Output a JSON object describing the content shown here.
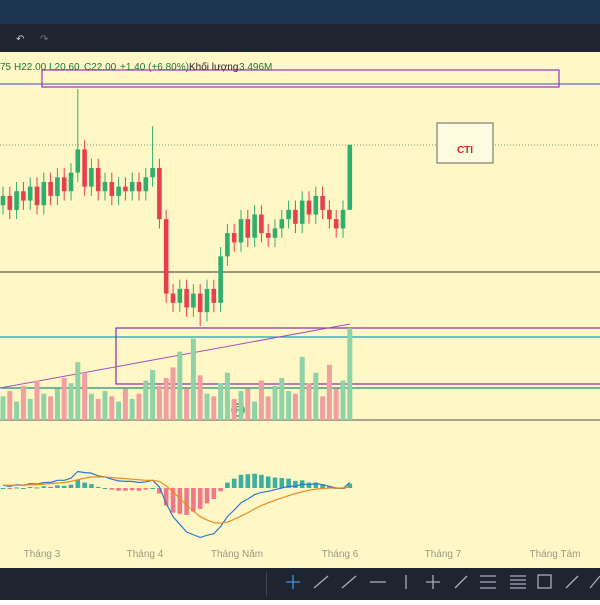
{
  "ohlc_bar": {
    "open_fragment": "75",
    "high": "H22.00",
    "low": "L20.60",
    "close": "C22.00",
    "change": "+1.40 (+6.80%)",
    "volume_label": "Khối lượng",
    "volume": "3.496M"
  },
  "symbol": "CTI",
  "marker": "F",
  "months": [
    "Tháng 3",
    "Tháng 4",
    "Tháng Năm",
    "Tháng 6",
    "Tháng 7",
    "Tháng Tám"
  ],
  "price_range": [
    17.5,
    23.5
  ],
  "candles": {
    "open": [
      20.7,
      20.9,
      20.6,
      21.0,
      20.8,
      21.1,
      20.7,
      21.2,
      20.9,
      21.3,
      21.0,
      21.4,
      21.9,
      21.1,
      21.5,
      21.0,
      21.2,
      20.9,
      21.1,
      21.0,
      21.2,
      21.0,
      21.3,
      21.5,
      20.4,
      18.8,
      18.6,
      18.9,
      18.5,
      18.8,
      18.4,
      18.9,
      18.6,
      19.6,
      20.1,
      19.9,
      20.4,
      20.0,
      20.5,
      20.1,
      20.0,
      20.2,
      20.4,
      20.6,
      20.3,
      20.8,
      20.5,
      20.9,
      20.6,
      20.4,
      20.2,
      20.6
    ],
    "high": [
      21.1,
      21.1,
      21.2,
      21.2,
      21.3,
      21.3,
      21.4,
      21.4,
      21.5,
      21.5,
      21.6,
      23.2,
      22.1,
      21.7,
      21.7,
      21.4,
      21.4,
      21.3,
      21.3,
      21.4,
      21.4,
      21.5,
      22.4,
      21.7,
      20.6,
      19.0,
      19.1,
      19.1,
      19.0,
      19.0,
      19.1,
      19.1,
      19.8,
      20.3,
      20.3,
      20.6,
      20.6,
      20.7,
      20.7,
      20.3,
      20.4,
      20.6,
      20.8,
      20.8,
      21.0,
      21.0,
      21.1,
      21.1,
      20.8,
      20.6,
      20.8,
      22.0
    ],
    "low": [
      20.5,
      20.4,
      20.4,
      20.6,
      20.6,
      20.5,
      20.5,
      20.7,
      20.7,
      20.8,
      20.8,
      21.2,
      20.9,
      20.9,
      20.8,
      20.8,
      20.7,
      20.7,
      20.8,
      20.8,
      20.8,
      20.8,
      21.1,
      20.2,
      18.6,
      18.4,
      18.4,
      18.3,
      18.3,
      18.1,
      18.2,
      18.4,
      18.4,
      19.4,
      19.7,
      19.7,
      19.8,
      19.8,
      19.9,
      19.8,
      19.8,
      20.0,
      20.2,
      20.1,
      20.1,
      20.3,
      20.3,
      20.4,
      20.2,
      20.0,
      20.0,
      20.6
    ],
    "close": [
      20.9,
      20.6,
      21.0,
      20.8,
      21.1,
      20.7,
      21.2,
      20.9,
      21.3,
      21.0,
      21.4,
      21.9,
      21.1,
      21.5,
      21.0,
      21.2,
      20.9,
      21.1,
      21.0,
      21.2,
      21.0,
      21.3,
      21.5,
      20.4,
      18.8,
      18.6,
      18.9,
      18.5,
      18.8,
      18.4,
      18.9,
      18.6,
      19.6,
      20.1,
      19.9,
      20.4,
      20.0,
      20.5,
      20.1,
      20.0,
      20.2,
      20.4,
      20.6,
      20.3,
      20.8,
      20.5,
      20.9,
      20.6,
      20.4,
      20.2,
      20.6,
      22.0
    ]
  },
  "volume_range": [
    0,
    3.5
  ],
  "volumes": [
    0.9,
    1.1,
    0.7,
    1.3,
    0.8,
    1.5,
    1.0,
    0.9,
    1.2,
    1.6,
    1.4,
    2.2,
    1.8,
    1.0,
    0.8,
    1.1,
    0.9,
    0.7,
    1.2,
    0.8,
    1.0,
    1.5,
    1.9,
    1.3,
    1.6,
    2.0,
    2.6,
    1.2,
    3.1,
    1.7,
    1.0,
    0.9,
    1.4,
    1.8,
    0.8,
    1.1,
    1.2,
    0.7,
    1.5,
    0.9,
    1.3,
    1.6,
    1.1,
    1.0,
    2.4,
    1.4,
    1.8,
    0.9,
    2.1,
    1.2,
    1.5,
    3.496
  ],
  "macd_range": [
    -1.2,
    0.8
  ],
  "macd": [
    0.05,
    0.03,
    0.06,
    0.05,
    0.08,
    0.07,
    0.1,
    0.1,
    0.14,
    0.14,
    0.18,
    0.3,
    0.28,
    0.27,
    0.22,
    0.2,
    0.16,
    0.13,
    0.12,
    0.12,
    0.1,
    0.11,
    0.14,
    0.02,
    -0.28,
    -0.52,
    -0.66,
    -0.8,
    -0.85,
    -0.9,
    -0.86,
    -0.83,
    -0.7,
    -0.52,
    -0.4,
    -0.27,
    -0.2,
    -0.12,
    -0.08,
    -0.06,
    -0.03,
    0.0,
    0.03,
    0.03,
    0.07,
    0.06,
    0.08,
    0.06,
    0.03,
    0.0,
    -0.01,
    0.1
  ],
  "signal": [
    0.05,
    0.05,
    0.05,
    0.05,
    0.06,
    0.06,
    0.07,
    0.08,
    0.09,
    0.1,
    0.12,
    0.15,
    0.18,
    0.2,
    0.2,
    0.2,
    0.19,
    0.18,
    0.17,
    0.16,
    0.15,
    0.14,
    0.14,
    0.12,
    0.04,
    -0.07,
    -0.19,
    -0.31,
    -0.42,
    -0.52,
    -0.58,
    -0.63,
    -0.64,
    -0.62,
    -0.57,
    -0.51,
    -0.45,
    -0.38,
    -0.32,
    -0.27,
    -0.22,
    -0.18,
    -0.14,
    -0.1,
    -0.07,
    -0.04,
    -0.02,
    -0.01,
    0.0,
    0.0,
    0.0,
    0.02
  ],
  "histogram": [
    0,
    -0.02,
    0.01,
    0,
    0.02,
    0.01,
    0.03,
    0.02,
    0.05,
    0.04,
    0.06,
    0.15,
    0.1,
    0.07,
    0.02,
    0,
    -0.03,
    -0.05,
    -0.05,
    -0.04,
    -0.05,
    -0.03,
    0,
    -0.1,
    -0.32,
    -0.45,
    -0.47,
    -0.49,
    -0.43,
    -0.38,
    -0.28,
    -0.2,
    -0.06,
    0.1,
    0.17,
    0.24,
    0.25,
    0.26,
    0.24,
    0.21,
    0.19,
    0.18,
    0.17,
    0.13,
    0.14,
    0.1,
    0.1,
    0.07,
    0.03,
    0,
    -0.01,
    0.08
  ]
}
